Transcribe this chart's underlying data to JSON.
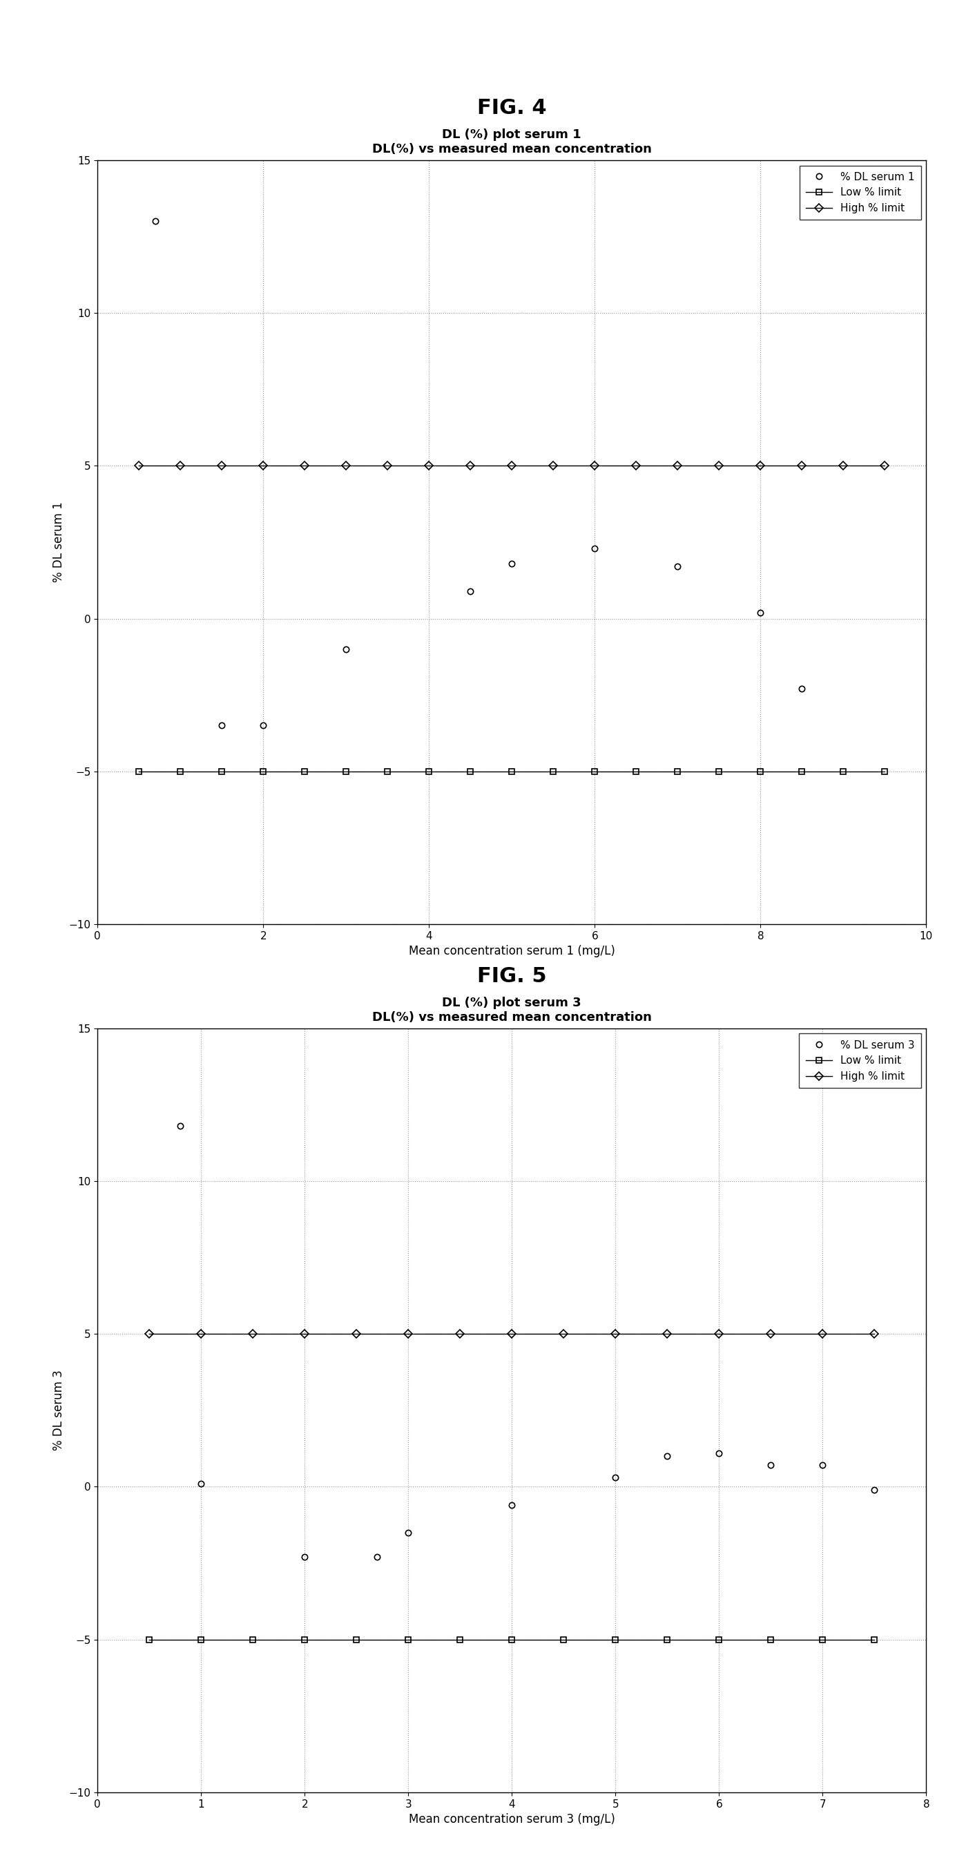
{
  "fig4_title": "FIG. 4",
  "fig5_title": "FIG. 5",
  "plot1": {
    "title_line1": "DL (%) plot serum 1",
    "title_line2": "DL(%) vs measured mean concentration",
    "xlabel": "Mean concentration serum 1 (mg/L)",
    "ylabel": "% DL serum 1",
    "xlim": [
      0,
      10
    ],
    "ylim": [
      -10,
      15
    ],
    "xticks": [
      0,
      2,
      4,
      6,
      8,
      10
    ],
    "yticks": [
      -10,
      -5,
      0,
      5,
      10,
      15
    ],
    "data_x": [
      0.7,
      1.5,
      2.0,
      3.0,
      4.5,
      5.0,
      6.0,
      7.0,
      8.0,
      8.5
    ],
    "data_y": [
      13.0,
      -3.5,
      -3.5,
      -1.0,
      0.9,
      1.8,
      2.3,
      1.7,
      0.2,
      -2.3
    ],
    "low_x": [
      0.5,
      1.0,
      1.5,
      2.0,
      2.5,
      3.0,
      3.5,
      4.0,
      4.5,
      5.0,
      5.5,
      6.0,
      6.5,
      7.0,
      7.5,
      8.0,
      8.5,
      9.0,
      9.5
    ],
    "low_y": [
      -5,
      -5,
      -5,
      -5,
      -5,
      -5,
      -5,
      -5,
      -5,
      -5,
      -5,
      -5,
      -5,
      -5,
      -5,
      -5,
      -5,
      -5,
      -5
    ],
    "high_x": [
      0.5,
      1.0,
      1.5,
      2.0,
      2.5,
      3.0,
      3.5,
      4.0,
      4.5,
      5.0,
      5.5,
      6.0,
      6.5,
      7.0,
      7.5,
      8.0,
      8.5,
      9.0,
      9.5
    ],
    "high_y": [
      5,
      5,
      5,
      5,
      5,
      5,
      5,
      5,
      5,
      5,
      5,
      5,
      5,
      5,
      5,
      5,
      5,
      5,
      5
    ],
    "legend_data": "% DL serum 1",
    "legend_low": "Low % limit",
    "legend_high": "High % limit"
  },
  "plot2": {
    "title_line1": "DL (%) plot serum 3",
    "title_line2": "DL(%) vs measured mean concentration",
    "xlabel": "Mean concentration serum 3 (mg/L)",
    "ylabel": "% DL serum 3",
    "xlim": [
      0,
      8
    ],
    "ylim": [
      -10,
      15
    ],
    "xticks": [
      0,
      1,
      2,
      3,
      4,
      5,
      6,
      7,
      8
    ],
    "yticks": [
      -10,
      -5,
      0,
      5,
      10,
      15
    ],
    "data_x": [
      0.8,
      1.0,
      2.0,
      2.7,
      3.0,
      4.0,
      5.0,
      5.5,
      6.0,
      6.5,
      7.0,
      7.5
    ],
    "data_y": [
      11.8,
      0.1,
      -2.3,
      -2.3,
      -1.5,
      -0.6,
      0.3,
      1.0,
      1.1,
      0.7,
      0.7,
      -0.1
    ],
    "low_x": [
      0.5,
      1.0,
      1.5,
      2.0,
      2.5,
      3.0,
      3.5,
      4.0,
      4.5,
      5.0,
      5.5,
      6.0,
      6.5,
      7.0,
      7.5
    ],
    "low_y": [
      -5,
      -5,
      -5,
      -5,
      -5,
      -5,
      -5,
      -5,
      -5,
      -5,
      -5,
      -5,
      -5,
      -5,
      -5
    ],
    "high_x": [
      0.5,
      1.0,
      1.5,
      2.0,
      2.5,
      3.0,
      3.5,
      4.0,
      4.5,
      5.0,
      5.5,
      6.0,
      6.5,
      7.0,
      7.5
    ],
    "high_y": [
      5,
      5,
      5,
      5,
      5,
      5,
      5,
      5,
      5,
      5,
      5,
      5,
      5,
      5,
      5
    ],
    "legend_data": "% DL serum 3",
    "legend_low": "Low % limit",
    "legend_high": "High % limit"
  },
  "background_color": "#ffffff",
  "line_color": "#000000",
  "grid_color": "#999999",
  "marker_size": 6,
  "line_width": 1.0,
  "fig_label_fontsize": 22,
  "title_fontsize": 13,
  "tick_fontsize": 11,
  "label_fontsize": 12,
  "legend_fontsize": 11
}
